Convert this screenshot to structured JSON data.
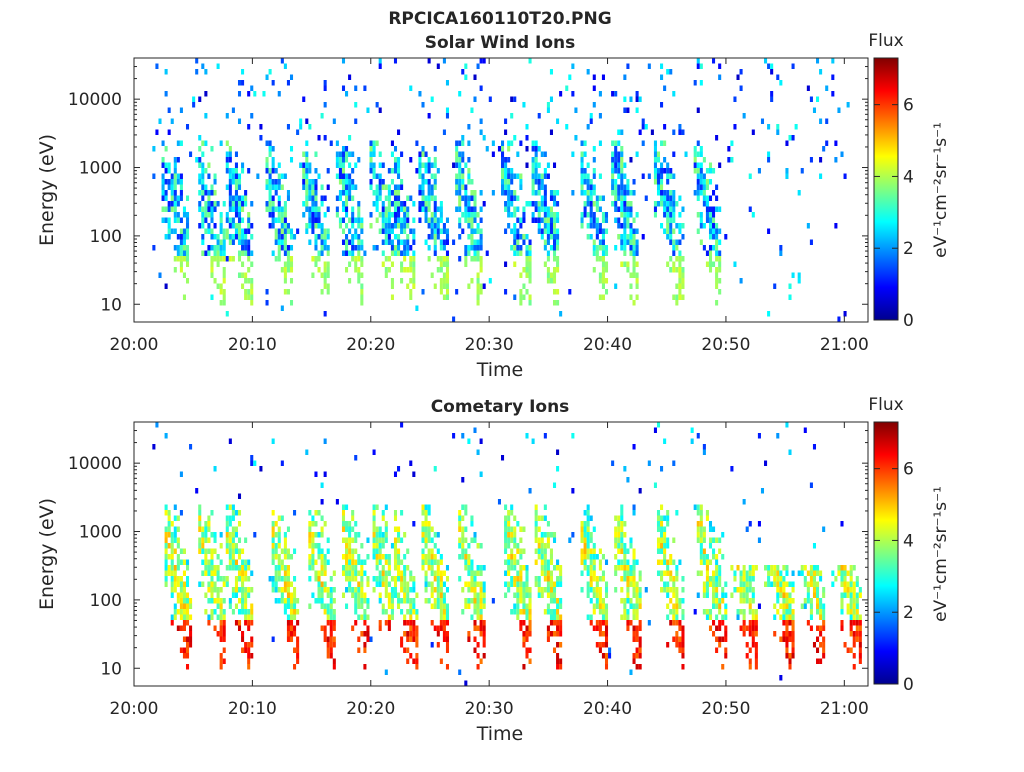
{
  "figure": {
    "filename": "RPCICA160110T20.PNG"
  },
  "colors": {
    "axis": "#262626",
    "background": "#ffffff",
    "colormap": "jet"
  },
  "chart_data": [
    {
      "type": "heatmap",
      "title": "Solar Wind Ions",
      "xlabel": "Time",
      "ylabel": "Energy (eV)",
      "yscale": "log",
      "ylim": [
        5.5,
        40000
      ],
      "xlim": [
        "20:00",
        "21:02"
      ],
      "x_ticks": [
        "20:00",
        "20:10",
        "20:20",
        "20:30",
        "20:40",
        "20:50",
        "21:00"
      ],
      "y_ticks": [
        "10",
        "100",
        "1000",
        "10000"
      ],
      "colorbar": {
        "title": "Flux",
        "label": "eV⁻¹cm⁻²sr⁻¹s⁻¹",
        "ticks": [
          "0",
          "2",
          "4",
          "6"
        ],
        "range": [
          0,
          7.3
        ]
      },
      "grid": false,
      "bursts_minutes": [
        3.5,
        6.5,
        8.8,
        12.3,
        15.3,
        18.3,
        21.2,
        22.5,
        25.3,
        28.3,
        32.3,
        34.8,
        38.8,
        41.5,
        45.2,
        48.5
      ],
      "population": "solar-wind",
      "dominant_flux": [
        1,
        3.5
      ]
    },
    {
      "type": "heatmap",
      "title": "Cometary Ions",
      "xlabel": "Time",
      "ylabel": "Energy (eV)",
      "yscale": "log",
      "ylim": [
        5.5,
        40000
      ],
      "xlim": [
        "20:00",
        "21:02"
      ],
      "x_ticks": [
        "20:00",
        "20:10",
        "20:20",
        "20:30",
        "20:40",
        "20:50",
        "21:00"
      ],
      "y_ticks": [
        "10",
        "100",
        "1000",
        "10000"
      ],
      "colorbar": {
        "title": "Flux",
        "label": "eV⁻¹cm⁻²sr⁻¹s⁻¹",
        "ticks": [
          "0",
          "2",
          "4",
          "6"
        ],
        "range": [
          0,
          7.3
        ]
      },
      "grid": false,
      "bursts_minutes": [
        3.7,
        6.7,
        9.0,
        12.8,
        15.8,
        18.8,
        21.3,
        22.7,
        25.5,
        28.5,
        32.5,
        35.0,
        38.8,
        41.8,
        45.3,
        48.8,
        51.5,
        54.5,
        57.3,
        60.2
      ],
      "population": "cometary",
      "dominant_flux": [
        4.5,
        6.8
      ]
    }
  ]
}
